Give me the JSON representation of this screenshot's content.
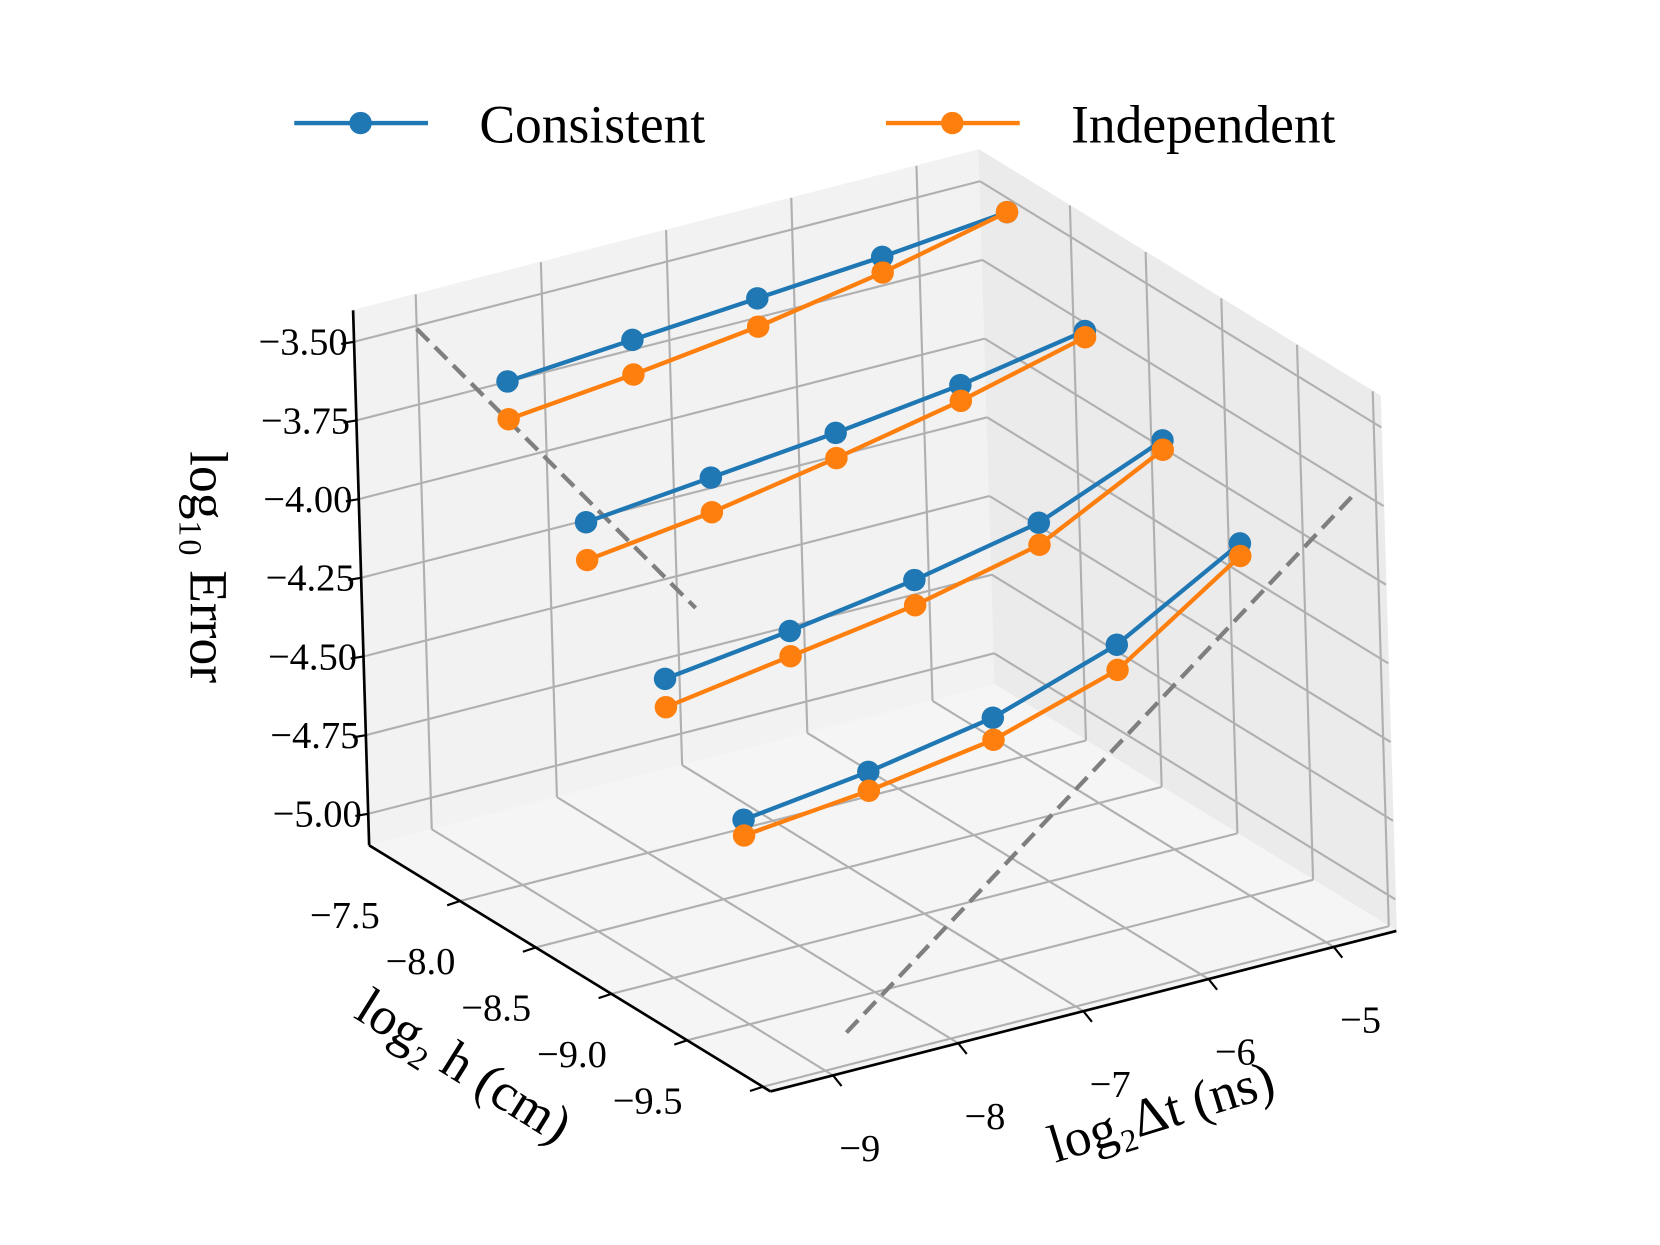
{
  "chart_data": {
    "type": "line3d",
    "xlabel": "log₂Δt (ns)",
    "ylabel": "log₂ h (cm)",
    "zlabel": "log₁₀ Error",
    "x": [
      -9,
      -8,
      -7,
      -6,
      -5
    ],
    "xlim": [
      -9.5,
      -4.5
    ],
    "ylim": [
      -9.55,
      -6.9
    ],
    "zlim": [
      -5.1,
      -3.4
    ],
    "xticks": [
      {
        "value": -9,
        "label": "−9"
      },
      {
        "value": -8,
        "label": "−8"
      },
      {
        "value": -7,
        "label": "−7"
      },
      {
        "value": -6,
        "label": "−6"
      },
      {
        "value": -5,
        "label": "−5"
      }
    ],
    "yticks": [
      {
        "value": -7.5,
        "label": "−7.5"
      },
      {
        "value": -8.0,
        "label": "−8.0"
      },
      {
        "value": -8.5,
        "label": "−8.5"
      },
      {
        "value": -9.0,
        "label": "−9.0"
      },
      {
        "value": -9.5,
        "label": "−9.5"
      }
    ],
    "zticks": [
      {
        "value": -5.0,
        "label": "−5.00"
      },
      {
        "value": -4.75,
        "label": "−4.75"
      },
      {
        "value": -4.5,
        "label": "−4.50"
      },
      {
        "value": -4.25,
        "label": "−4.25"
      },
      {
        "value": -4.0,
        "label": "−4.00"
      },
      {
        "value": -3.75,
        "label": "−3.75"
      },
      {
        "value": -3.5,
        "label": "−3.50"
      }
    ],
    "grid": true,
    "legend": "top",
    "series": [
      {
        "name": "Consistent",
        "color": "#1f77b4",
        "lines": [
          {
            "y": -7.5,
            "values": [
              -3.5,
              -3.47,
              -3.44,
              -3.41,
              -3.37
            ]
          },
          {
            "y": -8.0,
            "values": [
              -3.8,
              -3.76,
              -3.72,
              -3.67,
              -3.6
            ]
          },
          {
            "y": -8.5,
            "values": [
              -4.15,
              -4.1,
              -4.04,
              -3.96,
              -3.8
            ]
          },
          {
            "y": -9.0,
            "values": [
              -4.45,
              -4.4,
              -4.33,
              -4.2,
              -3.98
            ]
          }
        ]
      },
      {
        "name": "Independent",
        "color": "#ff7f0e",
        "lines": [
          {
            "y": -7.5,
            "values": [
              -3.62,
              -3.58,
              -3.53,
              -3.46,
              -3.37
            ]
          },
          {
            "y": -8.0,
            "values": [
              -3.92,
              -3.87,
              -3.8,
              -3.72,
              -3.62
            ]
          },
          {
            "y": -8.5,
            "values": [
              -4.24,
              -4.18,
              -4.12,
              -4.03,
              -3.83
            ]
          },
          {
            "y": -9.0,
            "values": [
              -4.5,
              -4.46,
              -4.4,
              -4.28,
              -4.02
            ]
          }
        ]
      }
    ],
    "reference_lines": [
      {
        "color": "#7f7f7f",
        "x": [
          -9,
          -9
        ],
        "y": [
          -6.9,
          -8.72
        ],
        "z": [
          -3.51,
          -3.86
        ]
      },
      {
        "color": "#7f7f7f",
        "x": [
          -8.73,
          -4.6
        ],
        "y": [
          -9.42,
          -9.42
        ],
        "z": [
          -5.03,
          -3.75
        ]
      }
    ]
  }
}
